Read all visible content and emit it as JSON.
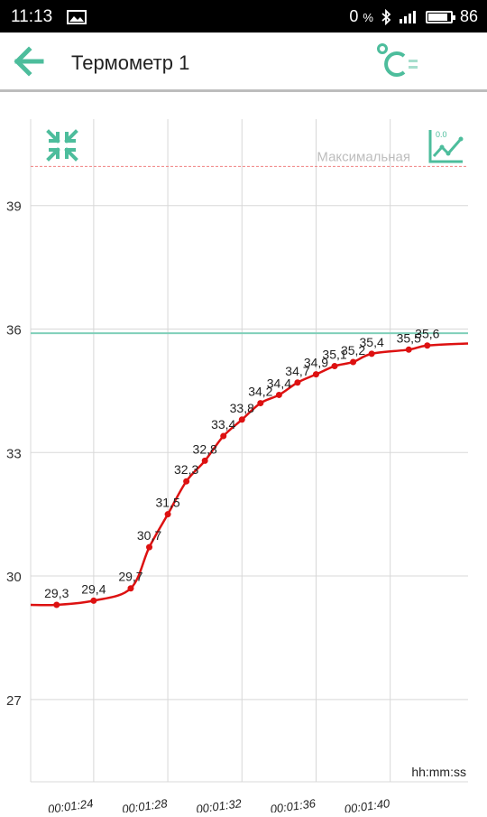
{
  "status_bar": {
    "time": "11:13",
    "data_usage": "0",
    "data_unit": "%",
    "battery": "86",
    "battery_level": 0.86
  },
  "app_bar": {
    "title": "Термометр 1",
    "icons": {
      "back": "arrow-left-icon",
      "unit": "celsius-icon"
    }
  },
  "toolbar": {
    "icons": {
      "collapse": "collapse-arrows-icon",
      "chart_values": "chart-values-icon"
    },
    "chart_values_badge": "0.0"
  },
  "colors": {
    "accent": "#4dbd9c",
    "series": "#dd1111",
    "max_line": "#f08080",
    "current_line": "#7fcfb9",
    "grid": "#d8d8d8"
  },
  "chart_data": {
    "type": "line",
    "x_axis_label": "hh:mm:ss",
    "x_ticks": [
      "00:01:24",
      "00:01:28",
      "00:01:32",
      "00:01:36",
      "00:01:40"
    ],
    "x_tick_seconds": [
      84,
      88,
      92,
      96,
      100
    ],
    "xlim": [
      80.6,
      104.2
    ],
    "y_ticks": [
      27,
      30,
      33,
      36,
      39
    ],
    "ylim": [
      25.0,
      41.1
    ],
    "max_line": {
      "label": "Максимальная",
      "value": 39.95
    },
    "current_line": {
      "value": 35.9
    },
    "series": [
      {
        "points": [
          {
            "x": 82.0,
            "y": 29.3,
            "label": "29,3"
          },
          {
            "x": 84.0,
            "y": 29.4,
            "label": "29,4"
          },
          {
            "x": 86.0,
            "y": 29.7,
            "label": "29,7"
          },
          {
            "x": 87.0,
            "y": 30.7,
            "label": "30,7"
          },
          {
            "x": 88.0,
            "y": 31.5,
            "label": "31,5"
          },
          {
            "x": 89.0,
            "y": 32.3,
            "label": "32,3"
          },
          {
            "x": 90.0,
            "y": 32.8,
            "label": "32,8"
          },
          {
            "x": 91.0,
            "y": 33.4,
            "label": "33,4"
          },
          {
            "x": 92.0,
            "y": 33.8,
            "label": "33,8"
          },
          {
            "x": 93.0,
            "y": 34.2,
            "label": "34,2"
          },
          {
            "x": 94.0,
            "y": 34.4,
            "label": "34,4"
          },
          {
            "x": 95.0,
            "y": 34.7,
            "label": "34,7"
          },
          {
            "x": 96.0,
            "y": 34.9,
            "label": "34,9"
          },
          {
            "x": 97.0,
            "y": 35.1,
            "label": "35,1"
          },
          {
            "x": 98.0,
            "y": 35.2,
            "label": "35,2"
          },
          {
            "x": 99.0,
            "y": 35.4,
            "label": "35,4"
          },
          {
            "x": 101.0,
            "y": 35.5,
            "label": "35,5"
          },
          {
            "x": 102.0,
            "y": 35.6,
            "label": "35,6"
          }
        ],
        "curve_start": {
          "x": 80.6,
          "y": 29.3
        },
        "curve_end": {
          "x": 104.2,
          "y": 35.65
        }
      }
    ]
  }
}
